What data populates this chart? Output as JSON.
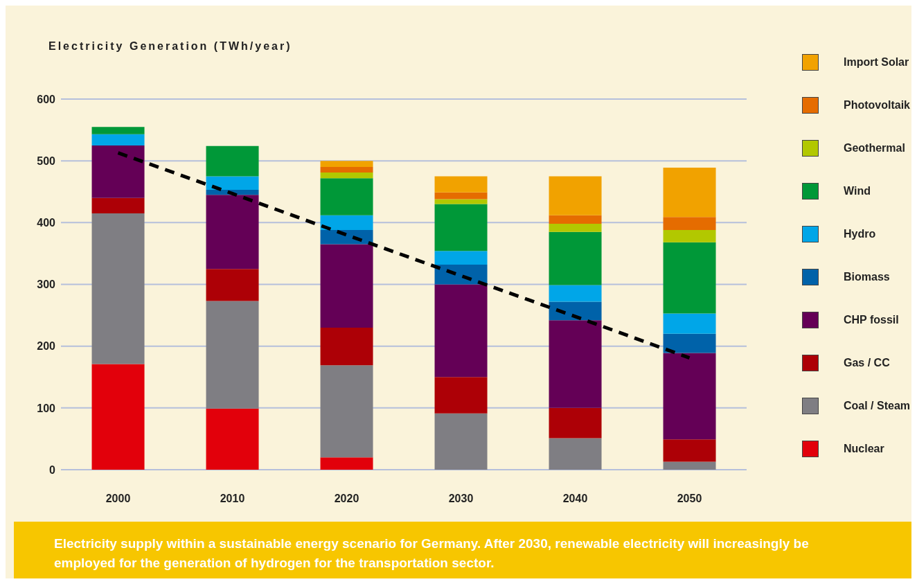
{
  "chart_data": {
    "type": "bar",
    "stacked": true,
    "ylabel": "Electricity Generation (TWh/year)",
    "categories": [
      "2000",
      "2010",
      "2020",
      "2030",
      "2040",
      "2050"
    ],
    "series": [
      {
        "name": "Nuclear",
        "color": "#e2000b",
        "values": [
          171,
          99,
          20,
          0,
          0,
          0
        ]
      },
      {
        "name": "Coal / Steam",
        "color": "#7f7e83",
        "values": [
          244,
          174,
          149,
          91,
          51,
          13
        ]
      },
      {
        "name": "Gas / CC",
        "color": "#ad0006",
        "values": [
          25,
          52,
          61,
          59,
          49,
          36
        ]
      },
      {
        "name": "CHP fossil",
        "color": "#640056",
        "values": [
          85,
          120,
          135,
          150,
          142,
          140
        ]
      },
      {
        "name": "Biomass",
        "color": "#0062a9",
        "values": [
          0,
          8,
          23,
          32,
          30,
          31
        ]
      },
      {
        "name": "Hydro",
        "color": "#00a6e8",
        "values": [
          18,
          22,
          24,
          22,
          27,
          33
        ]
      },
      {
        "name": "Wind",
        "color": "#009838",
        "values": [
          12,
          49,
          60,
          76,
          86,
          115
        ]
      },
      {
        "name": "Geothermal",
        "color": "#b2c800",
        "values": [
          0,
          0,
          9,
          8,
          13,
          20
        ]
      },
      {
        "name": "Photovoltaik",
        "color": "#e56c00",
        "values": [
          0,
          0,
          9,
          11,
          14,
          21
        ]
      },
      {
        "name": "Import Solar",
        "color": "#f1a200",
        "values": [
          0,
          0,
          10,
          26,
          63,
          80
        ]
      },
      {
        "type": "line",
        "values": [
          513,
          447,
          380,
          314,
          248,
          181
        ],
        "color": "#000000",
        "line_style": "dashed"
      }
    ],
    "ylim": [
      0,
      600
    ],
    "yticks": [
      0,
      100,
      200,
      300,
      400,
      500,
      600
    ],
    "grid": "y",
    "legend": "right",
    "annotations": [
      "Electricity supply within a sustainable energy scenario for Germany. After 2030, renewable electricity will increasingly be employed for the generation of hydrogen for the transportation sector."
    ]
  }
}
